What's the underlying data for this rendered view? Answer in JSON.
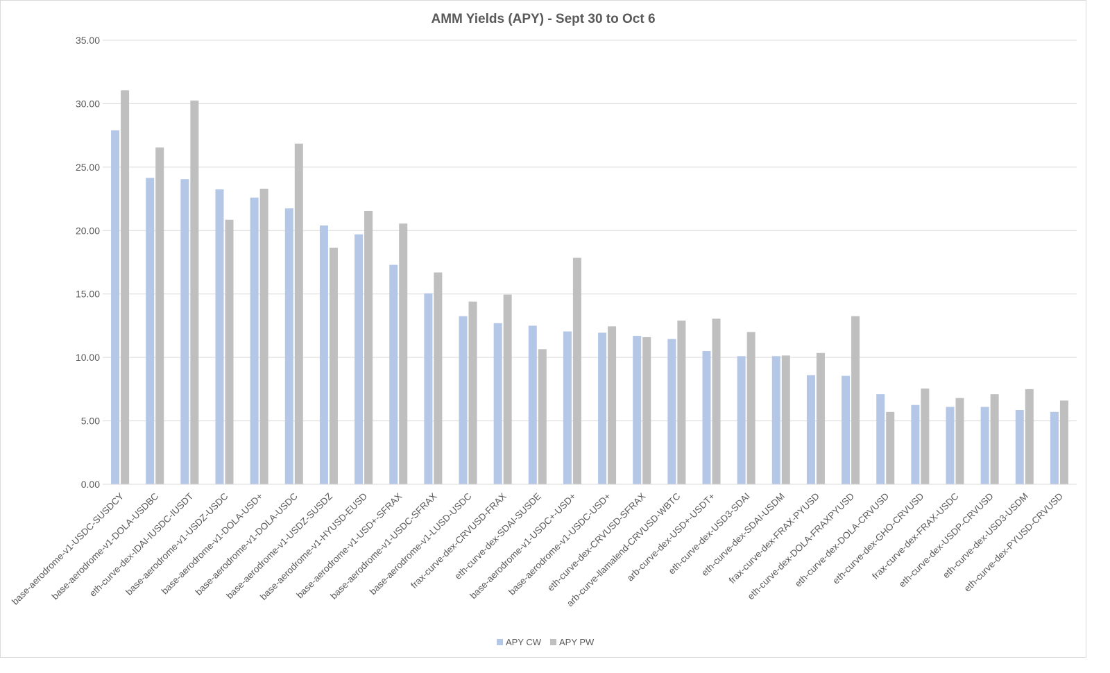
{
  "chart_data": {
    "type": "bar",
    "title": "AMM Yields (APY) - Sept 30 to Oct 6",
    "xlabel": "",
    "ylabel": "",
    "ylim": [
      0,
      35
    ],
    "yticks": [
      "0.00",
      "5.00",
      "10.00",
      "15.00",
      "20.00",
      "25.00",
      "30.00",
      "35.00"
    ],
    "grid": true,
    "legend_position": "bottom",
    "categories": [
      "base-aerodrome-v1-USDC-SUSDCY",
      "base-aerodrome-v1-DOLA-USDBC",
      "eth-curve-dex-IDAI-IUSDC-IUSDT",
      "base-aerodrome-v1-USDZ-USDC",
      "base-aerodrome-v1-DOLA-USD+",
      "base-aerodrome-v1-DOLA-USDC",
      "base-aerodrome-v1-USDZ-SUSDZ",
      "base-aerodrome-v1-HYUSD-EUSD",
      "base-aerodrome-v1-USD+-SFRAX",
      "base-aerodrome-v1-USDC-SFRAX",
      "base-aerodrome-v1-LUSD-USDC",
      "frax-curve-dex-CRVUSD-FRAX",
      "eth-curve-dex-SDAI-SUSDE",
      "base-aerodrome-v1-USDC+-USD+",
      "base-aerodrome-v1-USDC-USD+",
      "eth-curve-dex-CRVUSD-SFRAX",
      "arb-curve-llamalend-CRVUSD-WBTC",
      "arb-curve-dex-USD+-USDT+",
      "eth-curve-dex-USD3-SDAI",
      "eth-curve-dex-SDAI-USDM",
      "frax-curve-dex-FRAX-PYUSD",
      "eth-curve-dex-DOLA-FRAXPYUSD",
      "eth-curve-dex-DOLA-CRVUSD",
      "eth-curve-dex-GHO-CRVUSD",
      "frax-curve-dex-FRAX-USDC",
      "eth-curve-dex-USDP-CRVUSD",
      "eth-curve-dex-USD3-USDM",
      "eth-curve-dex-PYUSD-CRVUSD"
    ],
    "series": [
      {
        "name": "APY CW",
        "color": "#b4c7e7",
        "values": [
          27.9,
          24.15,
          24.05,
          23.25,
          22.6,
          21.75,
          20.4,
          19.7,
          17.3,
          15.05,
          13.25,
          12.7,
          12.5,
          12.05,
          11.95,
          11.7,
          11.45,
          10.5,
          10.1,
          10.1,
          8.6,
          8.55,
          7.1,
          6.25,
          6.1,
          6.1,
          5.85,
          5.7
        ]
      },
      {
        "name": "APY PW",
        "color": "#bfbfbf",
        "values": [
          31.05,
          26.55,
          30.25,
          20.85,
          23.3,
          26.85,
          18.65,
          21.55,
          20.55,
          16.7,
          14.4,
          14.95,
          10.65,
          17.85,
          12.45,
          11.6,
          12.9,
          13.05,
          12.0,
          10.15,
          10.35,
          13.25,
          5.7,
          7.55,
          6.8,
          7.1,
          7.5,
          6.6
        ]
      }
    ]
  }
}
